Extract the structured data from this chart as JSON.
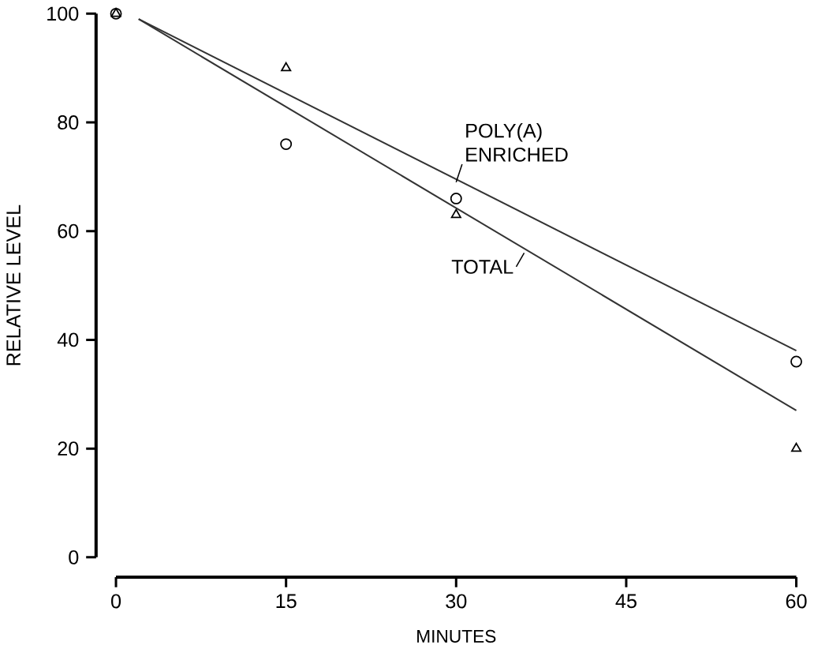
{
  "chart_data": {
    "type": "scatter",
    "xlabel": "MINUTES",
    "ylabel": "RELATIVE LEVEL",
    "xlim": [
      0,
      60
    ],
    "ylim": [
      0,
      100
    ],
    "xticks": [
      0,
      15,
      30,
      45,
      60
    ],
    "yticks": [
      0,
      20,
      40,
      60,
      80,
      100
    ],
    "series": [
      {
        "marker": "circle",
        "color": "#000000",
        "x": [
          0,
          15,
          30,
          60
        ],
        "values": [
          100,
          76,
          66,
          36
        ]
      },
      {
        "marker": "triangle",
        "color": "#000000",
        "x": [
          0,
          15,
          30,
          60
        ],
        "values": [
          100,
          90,
          63,
          20
        ]
      },
      {
        "type": "line",
        "marker": "none",
        "color": "#333333",
        "x": [
          2,
          60
        ],
        "values": [
          99,
          38
        ]
      },
      {
        "type": "line",
        "marker": "none",
        "color": "#333333",
        "x": [
          2,
          60
        ],
        "values": [
          99,
          27
        ]
      }
    ],
    "annotations": [
      {
        "text": "POLY(A) ENRICHED",
        "x": 30,
        "y": 69
      },
      {
        "text": "TOTAL",
        "x": 36,
        "y": 56
      }
    ]
  }
}
